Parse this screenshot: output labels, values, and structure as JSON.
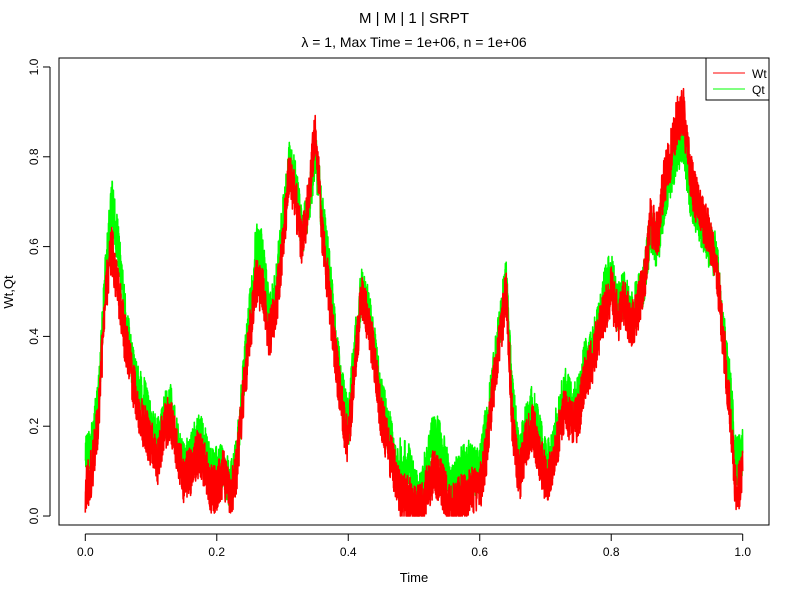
{
  "chart_data": {
    "type": "line",
    "title": "M | M | 1 | SRPT",
    "subtitle": {
      "lambda_symbol": "λ",
      "rest": " = 1, Max Time = 1e+06, n = 1e+06"
    },
    "xlabel": "Time",
    "ylabel": "Wt,Qt",
    "xlim": [
      -0.04,
      1.04
    ],
    "ylim": [
      -0.02,
      1.02
    ],
    "xticks": [
      0.0,
      0.2,
      0.4,
      0.6,
      0.8,
      1.0
    ],
    "xtick_labels": [
      "0.0",
      "0.2",
      "0.4",
      "0.6",
      "0.8",
      "1.0"
    ],
    "yticks": [
      0.0,
      0.2,
      0.4,
      0.6,
      0.8,
      1.0
    ],
    "ytick_labels": [
      "0.0",
      "0.2",
      "0.4",
      "0.6",
      "0.8",
      "1.0"
    ],
    "grid": false,
    "legend_position": "top-right",
    "colors": {
      "Wt": "#ff0000",
      "Qt": "#00ff00"
    },
    "series": [
      {
        "name": "Qt",
        "x": [
          0.0,
          0.01,
          0.02,
          0.03,
          0.04,
          0.05,
          0.06,
          0.07,
          0.08,
          0.09,
          0.1,
          0.11,
          0.12,
          0.13,
          0.14,
          0.15,
          0.16,
          0.17,
          0.18,
          0.19,
          0.2,
          0.21,
          0.22,
          0.23,
          0.24,
          0.25,
          0.26,
          0.27,
          0.28,
          0.29,
          0.3,
          0.31,
          0.32,
          0.33,
          0.34,
          0.35,
          0.36,
          0.37,
          0.38,
          0.39,
          0.4,
          0.41,
          0.42,
          0.43,
          0.44,
          0.45,
          0.46,
          0.47,
          0.48,
          0.49,
          0.5,
          0.51,
          0.52,
          0.53,
          0.54,
          0.55,
          0.56,
          0.57,
          0.58,
          0.59,
          0.6,
          0.61,
          0.62,
          0.63,
          0.64,
          0.65,
          0.66,
          0.67,
          0.68,
          0.69,
          0.7,
          0.71,
          0.72,
          0.73,
          0.74,
          0.75,
          0.76,
          0.77,
          0.78,
          0.79,
          0.8,
          0.81,
          0.82,
          0.83,
          0.84,
          0.85,
          0.86,
          0.87,
          0.88,
          0.89,
          0.9,
          0.91,
          0.92,
          0.93,
          0.94,
          0.95,
          0.96,
          0.97,
          0.98,
          0.99,
          1.0
        ],
        "y": [
          0.12,
          0.16,
          0.26,
          0.52,
          0.7,
          0.6,
          0.45,
          0.35,
          0.28,
          0.26,
          0.2,
          0.16,
          0.22,
          0.24,
          0.16,
          0.12,
          0.14,
          0.18,
          0.16,
          0.1,
          0.1,
          0.12,
          0.06,
          0.12,
          0.3,
          0.45,
          0.6,
          0.58,
          0.44,
          0.5,
          0.66,
          0.78,
          0.74,
          0.62,
          0.7,
          0.8,
          0.68,
          0.56,
          0.4,
          0.28,
          0.2,
          0.38,
          0.5,
          0.46,
          0.38,
          0.26,
          0.2,
          0.14,
          0.12,
          0.12,
          0.06,
          0.04,
          0.12,
          0.18,
          0.16,
          0.1,
          0.06,
          0.1,
          0.12,
          0.1,
          0.1,
          0.2,
          0.3,
          0.42,
          0.52,
          0.26,
          0.12,
          0.2,
          0.24,
          0.18,
          0.12,
          0.14,
          0.22,
          0.28,
          0.24,
          0.26,
          0.34,
          0.36,
          0.42,
          0.5,
          0.54,
          0.46,
          0.5,
          0.44,
          0.48,
          0.52,
          0.64,
          0.6,
          0.7,
          0.76,
          0.82,
          0.84,
          0.72,
          0.68,
          0.64,
          0.6,
          0.58,
          0.42,
          0.3,
          0.12,
          0.14
        ]
      },
      {
        "name": "Wt",
        "x": [
          0.0,
          0.01,
          0.02,
          0.03,
          0.04,
          0.05,
          0.06,
          0.07,
          0.08,
          0.09,
          0.1,
          0.11,
          0.12,
          0.13,
          0.14,
          0.15,
          0.16,
          0.17,
          0.18,
          0.19,
          0.2,
          0.21,
          0.22,
          0.23,
          0.24,
          0.25,
          0.26,
          0.27,
          0.28,
          0.29,
          0.3,
          0.31,
          0.32,
          0.33,
          0.34,
          0.35,
          0.36,
          0.37,
          0.38,
          0.39,
          0.4,
          0.41,
          0.42,
          0.43,
          0.44,
          0.45,
          0.46,
          0.47,
          0.48,
          0.49,
          0.5,
          0.51,
          0.52,
          0.53,
          0.54,
          0.55,
          0.56,
          0.57,
          0.58,
          0.59,
          0.6,
          0.61,
          0.62,
          0.63,
          0.64,
          0.65,
          0.66,
          0.67,
          0.68,
          0.69,
          0.7,
          0.71,
          0.72,
          0.73,
          0.74,
          0.75,
          0.76,
          0.77,
          0.78,
          0.79,
          0.8,
          0.81,
          0.82,
          0.83,
          0.84,
          0.85,
          0.86,
          0.87,
          0.88,
          0.89,
          0.9,
          0.91,
          0.92,
          0.93,
          0.94,
          0.95,
          0.96,
          0.97,
          0.98,
          0.99,
          1.0
        ],
        "y": [
          0.05,
          0.1,
          0.22,
          0.48,
          0.6,
          0.5,
          0.4,
          0.32,
          0.24,
          0.2,
          0.16,
          0.12,
          0.2,
          0.22,
          0.14,
          0.08,
          0.1,
          0.14,
          0.12,
          0.06,
          0.06,
          0.1,
          0.04,
          0.1,
          0.26,
          0.4,
          0.52,
          0.5,
          0.4,
          0.46,
          0.6,
          0.76,
          0.7,
          0.6,
          0.72,
          0.86,
          0.64,
          0.5,
          0.36,
          0.24,
          0.16,
          0.34,
          0.48,
          0.44,
          0.34,
          0.22,
          0.16,
          0.1,
          0.04,
          0.04,
          0.02,
          0.02,
          0.06,
          0.1,
          0.08,
          0.04,
          0.02,
          0.04,
          0.04,
          0.06,
          0.06,
          0.14,
          0.28,
          0.38,
          0.5,
          0.2,
          0.08,
          0.16,
          0.2,
          0.14,
          0.08,
          0.1,
          0.18,
          0.24,
          0.2,
          0.22,
          0.3,
          0.34,
          0.4,
          0.46,
          0.5,
          0.44,
          0.48,
          0.42,
          0.46,
          0.52,
          0.66,
          0.62,
          0.74,
          0.8,
          0.88,
          0.9,
          0.76,
          0.7,
          0.66,
          0.62,
          0.56,
          0.4,
          0.24,
          0.04,
          0.1
        ]
      }
    ]
  }
}
